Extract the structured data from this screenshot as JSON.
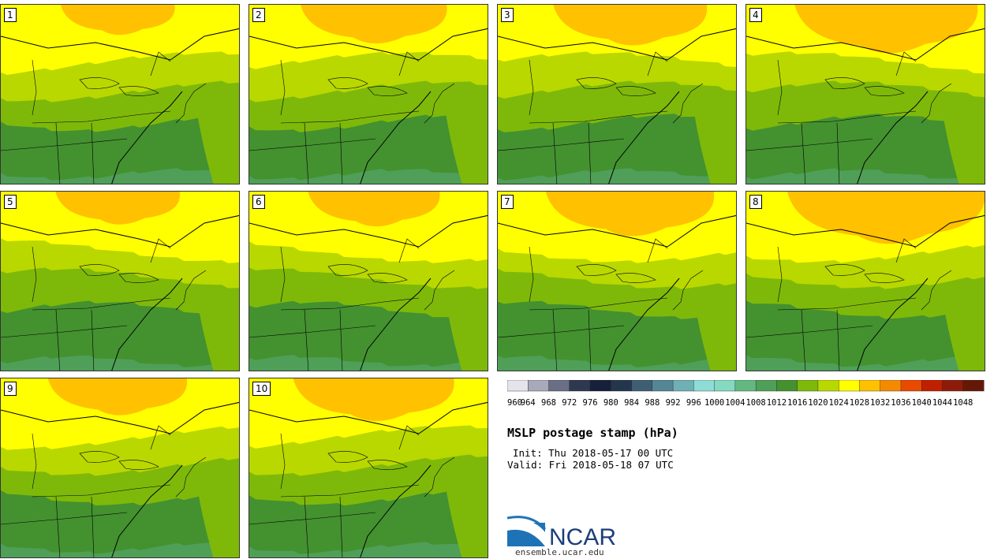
{
  "panels": [
    {
      "label": "1",
      "ridge": 0.78
    },
    {
      "label": "2",
      "ridge": 1.0
    },
    {
      "label": "3",
      "ridge": 1.05
    },
    {
      "label": "4",
      "ridge": 1.25
    },
    {
      "label": "5",
      "ridge": 0.85
    },
    {
      "label": "6",
      "ridge": 0.9
    },
    {
      "label": "7",
      "ridge": 1.15
    },
    {
      "label": "8",
      "ridge": 1.35
    },
    {
      "label": "9",
      "ridge": 0.95
    },
    {
      "label": "10",
      "ridge": 1.1
    }
  ],
  "colorbar": {
    "colors": [
      "#e4e4ea",
      "#a9a9b9",
      "#6b6f86",
      "#2e3850",
      "#17203a",
      "#24364e",
      "#3e5f73",
      "#558696",
      "#6fb0b5",
      "#8fdcd6",
      "#85d9c1",
      "#63b882",
      "#4f9f58",
      "#449130",
      "#7eb90a",
      "#b9d800",
      "#ffff00",
      "#ffc100",
      "#f58a00",
      "#e84b00",
      "#c02000",
      "#8e1b0a",
      "#651808"
    ],
    "tick_labels": [
      "960",
      "964",
      "968",
      "972",
      "976",
      "980",
      "984",
      "988",
      "992",
      "996",
      "1000",
      "1004",
      "1008",
      "1012",
      "1016",
      "1020",
      "1024",
      "1028",
      "1032",
      "1036",
      "1040",
      "1044",
      "1048"
    ]
  },
  "title": "MSLP postage stamp (hPa)",
  "init": "Init: Thu 2018-05-17 00 UTC",
  "valid": "Valid: Fri 2018-05-18 07 UTC",
  "logo": {
    "text": "NCAR",
    "url": "ensemble.ucar.edu"
  }
}
